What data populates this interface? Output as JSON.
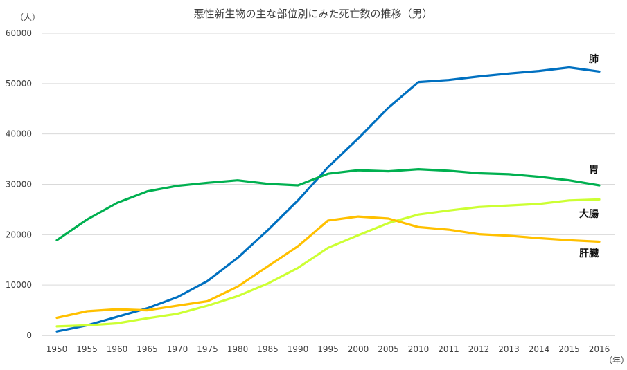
{
  "chart_data": {
    "type": "line",
    "title": "悪性新生物の主な部位別にみた死亡数の推移（男）",
    "y_unit": "（人）",
    "x_unit": "（年）",
    "categories": [
      "1950",
      "1955",
      "1960",
      "1965",
      "1970",
      "1975",
      "1980",
      "1985",
      "1990",
      "1995",
      "2000",
      "2005",
      "2010",
      "2011",
      "2012",
      "2013",
      "2014",
      "2015",
      "2016"
    ],
    "ylim": [
      0,
      60000
    ],
    "yticks": [
      "0",
      "10000",
      "20000",
      "30000",
      "40000",
      "50000",
      "60000"
    ],
    "grid": true,
    "series": [
      {
        "name": "肺",
        "color": "#0070c0",
        "values": [
          800,
          2000,
          3700,
          5400,
          7600,
          10800,
          15400,
          20900,
          26800,
          33400,
          39100,
          45200,
          50300,
          50700,
          51400,
          52000,
          52500,
          53200,
          52400
        ]
      },
      {
        "name": "胃",
        "color": "#00b050",
        "values": [
          18900,
          23000,
          26300,
          28600,
          29700,
          30300,
          30800,
          30100,
          29800,
          32100,
          32800,
          32600,
          33000,
          32700,
          32200,
          32000,
          31500,
          30800,
          29800
        ]
      },
      {
        "name": "大腸",
        "color": "#ccff33",
        "values": [
          1800,
          2000,
          2400,
          3400,
          4300,
          5900,
          7800,
          10300,
          13400,
          17400,
          19900,
          22300,
          24000,
          24800,
          25500,
          25800,
          26100,
          26800,
          27000
        ]
      },
      {
        "name": "肝臓",
        "color": "#ffc000",
        "values": [
          3500,
          4800,
          5200,
          5000,
          5900,
          6800,
          9700,
          13700,
          17700,
          22800,
          23600,
          23200,
          21500,
          21000,
          20100,
          19800,
          19300,
          18900,
          18600
        ]
      }
    ]
  }
}
